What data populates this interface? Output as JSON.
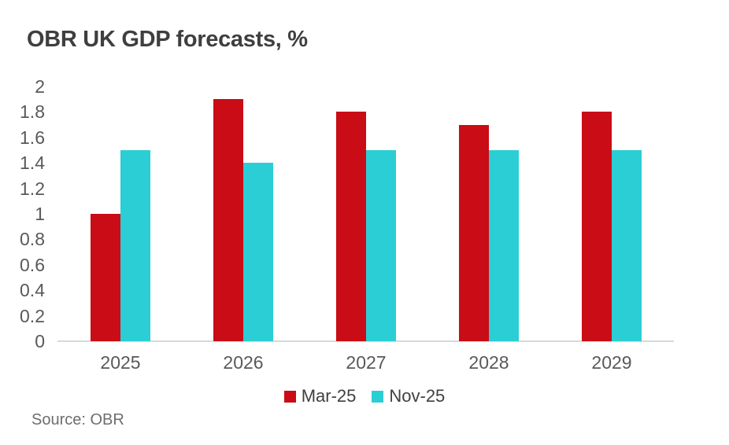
{
  "chart_data": {
    "type": "bar",
    "title": "OBR UK GDP forecasts, %",
    "categories": [
      "2025",
      "2026",
      "2027",
      "2028",
      "2029"
    ],
    "series": [
      {
        "name": "Mar-25",
        "color": "#c90c15",
        "values": [
          1.0,
          1.9,
          1.8,
          1.7,
          1.8
        ]
      },
      {
        "name": "Nov-25",
        "color": "#2bced4",
        "values": [
          1.5,
          1.4,
          1.5,
          1.5,
          1.5
        ]
      }
    ],
    "xlabel": "",
    "ylabel": "",
    "ylim": [
      0,
      2
    ],
    "ytick_labels": [
      "2",
      "1.8",
      "1.6",
      "1.4",
      "1.2",
      "1",
      "0.8",
      "0.6",
      "0.4",
      "0.2",
      "0"
    ],
    "grid": false,
    "legend_position": "bottom"
  },
  "source_note": "Source: OBR",
  "colors": {
    "series_mar_25": "#c90c15",
    "series_nov_25": "#2bced4",
    "title_text": "#3f3f3f",
    "axis_text": "#595959",
    "source_text": "#6e6e6e",
    "axis_line": "#d9d9d9",
    "background": "#ffffff"
  }
}
